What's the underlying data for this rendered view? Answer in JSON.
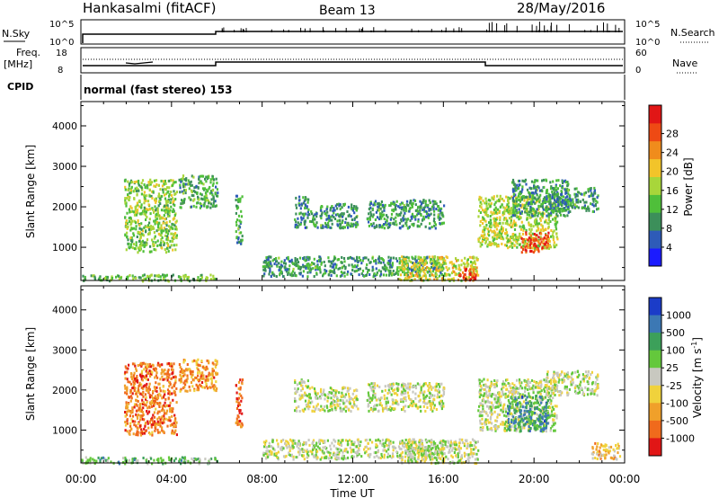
{
  "header": {
    "station": "Hankasalmi (fitACF)",
    "beam": "Beam 13",
    "date": "28/May/2016"
  },
  "top_panels": {
    "nsky_label": "N.Sky",
    "nsky_ticks": [
      "10^5",
      "10^0"
    ],
    "nsearch_label": "N.Search",
    "nsearch_ticks": [
      "10^5",
      "10^0"
    ],
    "freq_label_1": "Freq.",
    "freq_label_2": "[MHz]",
    "freq_ticks": [
      "18",
      "8"
    ],
    "nave_label": "Nave",
    "nave_ticks": [
      "60",
      "0"
    ],
    "cpid_label": "CPID",
    "cpid_text": "normal (fast stereo) 153"
  },
  "chart_data": [
    {
      "type": "heatmap",
      "name": "power",
      "ylabel": "Slant Range [km]",
      "xlabel": "Time UT",
      "x_ticks": [
        "00:00",
        "04:00",
        "08:00",
        "12:00",
        "16:00",
        "20:00",
        "00:00"
      ],
      "xlim_hours": [
        0,
        24
      ],
      "y_ticks": [
        1000,
        2000,
        3000,
        4000
      ],
      "ylim": [
        180,
        4600
      ],
      "colorbar": {
        "label": "Power [dB]",
        "ticks": [
          "4",
          "8",
          "12",
          "16",
          "20",
          "24",
          "28"
        ],
        "colors": [
          "#1b1bff",
          "#2e5bb8",
          "#3c8f5a",
          "#4fbf3a",
          "#a8d63a",
          "#f2c42a",
          "#f08c1c",
          "#ee4a14",
          "#e11616"
        ]
      },
      "echo_regions": [
        {
          "t": [
            1.9,
            4.2
          ],
          "r": [
            900,
            2700
          ],
          "level": 0.45
        },
        {
          "t": [
            4.3,
            6.0
          ],
          "r": [
            2000,
            2800
          ],
          "level": 0.35
        },
        {
          "t": [
            6.8,
            7.1
          ],
          "r": [
            1100,
            2300
          ],
          "level": 0.3
        },
        {
          "t": [
            9.4,
            10.0
          ],
          "r": [
            1500,
            2300
          ],
          "level": 0.25
        },
        {
          "t": [
            10.0,
            12.2
          ],
          "r": [
            1500,
            2100
          ],
          "level": 0.3
        },
        {
          "t": [
            12.6,
            16.0
          ],
          "r": [
            1500,
            2200
          ],
          "level": 0.3
        },
        {
          "t": [
            8.0,
            16.0
          ],
          "r": [
            300,
            800
          ],
          "level": 0.3
        },
        {
          "t": [
            14.0,
            17.5
          ],
          "r": [
            200,
            800
          ],
          "level": 0.55
        },
        {
          "t": [
            16.6,
            17.4
          ],
          "r": [
            200,
            500
          ],
          "level": 0.85
        },
        {
          "t": [
            17.5,
            21.0
          ],
          "r": [
            1000,
            2300
          ],
          "level": 0.5
        },
        {
          "t": [
            19.4,
            20.6
          ],
          "r": [
            900,
            1400
          ],
          "level": 0.85
        },
        {
          "t": [
            19.0,
            21.5
          ],
          "r": [
            1800,
            2700
          ],
          "level": 0.3
        },
        {
          "t": [
            0.0,
            6.0
          ],
          "r": [
            190,
            350
          ],
          "level": 0.4
        },
        {
          "t": [
            20.5,
            22.8
          ],
          "r": [
            1900,
            2500
          ],
          "level": 0.3
        }
      ]
    },
    {
      "type": "heatmap",
      "name": "velocity",
      "ylabel": "Slant Range [km]",
      "xlabel": "Time UT",
      "x_ticks": [
        "00:00",
        "04:00",
        "08:00",
        "12:00",
        "16:00",
        "20:00",
        "00:00"
      ],
      "xlim_hours": [
        0,
        24
      ],
      "y_ticks": [
        1000,
        2000,
        3000,
        4000
      ],
      "ylim": [
        180,
        4600
      ],
      "colorbar": {
        "label_main": "Velocity",
        "label_unit": "[m s",
        "label_sup": "-1",
        "label_close": "]",
        "ticks": [
          "1000",
          "500",
          "100",
          "25",
          "-25",
          "-100",
          "-500",
          "-1000"
        ],
        "colors": [
          "#1b3cc8",
          "#3c78b4",
          "#3ca05a",
          "#64c83c",
          "#c8c8c0",
          "#f0d23c",
          "#f0a02a",
          "#f06a1c",
          "#e11616"
        ]
      },
      "echo_regions": [
        {
          "t": [
            1.9,
            4.2
          ],
          "r": [
            900,
            2700
          ],
          "level": 0.8
        },
        {
          "t": [
            4.3,
            6.0
          ],
          "r": [
            2000,
            2800
          ],
          "level": 0.75
        },
        {
          "t": [
            6.8,
            7.1
          ],
          "r": [
            1100,
            2300
          ],
          "level": 0.85
        },
        {
          "t": [
            9.4,
            10.0
          ],
          "r": [
            1500,
            2300
          ],
          "level": 0.5
        },
        {
          "t": [
            10.0,
            12.2
          ],
          "r": [
            1500,
            2100
          ],
          "level": 0.5
        },
        {
          "t": [
            12.6,
            16.0
          ],
          "r": [
            1500,
            2200
          ],
          "level": 0.5
        },
        {
          "t": [
            8.0,
            16.0
          ],
          "r": [
            300,
            800
          ],
          "level": 0.5
        },
        {
          "t": [
            14.0,
            17.5
          ],
          "r": [
            200,
            800
          ],
          "level": 0.5
        },
        {
          "t": [
            17.5,
            21.0
          ],
          "r": [
            1000,
            2300
          ],
          "level": 0.5
        },
        {
          "t": [
            18.8,
            20.6
          ],
          "r": [
            1000,
            1900
          ],
          "level": 0.25
        },
        {
          "t": [
            0.0,
            6.0
          ],
          "r": [
            190,
            350
          ],
          "level": 0.35
        },
        {
          "t": [
            20.5,
            22.8
          ],
          "r": [
            1900,
            2500
          ],
          "level": 0.5
        },
        {
          "t": [
            22.5,
            23.8
          ],
          "r": [
            300,
            700
          ],
          "level": 0.65
        }
      ]
    }
  ]
}
